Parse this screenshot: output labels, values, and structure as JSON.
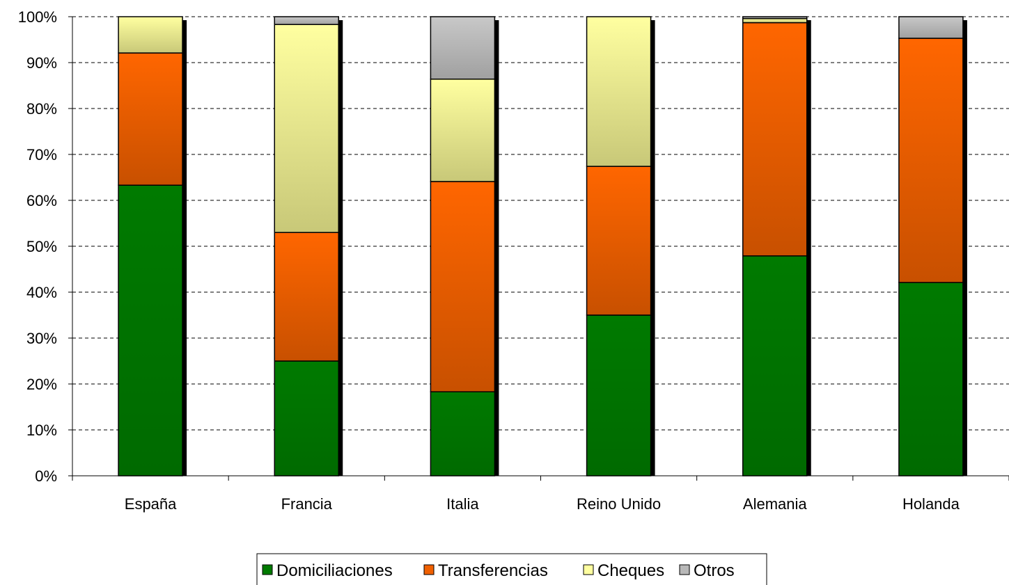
{
  "chart_data": {
    "type": "bar",
    "stacked": true,
    "percent_stacked": true,
    "categories": [
      "España",
      "Francia",
      "Italia",
      "Reino Unido",
      "Alemania",
      "Holanda"
    ],
    "series": [
      {
        "name": "Domiciliaciones",
        "color": "#007a00",
        "values": [
          63.3,
          25.0,
          18.3,
          35.0,
          47.9,
          42.1
        ]
      },
      {
        "name": "Transferencias",
        "color": "#f06000",
        "values": [
          28.8,
          28.0,
          45.8,
          32.4,
          50.8,
          53.2
        ]
      },
      {
        "name": "Cheques",
        "color": "#ffffa0",
        "values": [
          7.9,
          45.3,
          22.3,
          32.6,
          0.9,
          0.0
        ]
      },
      {
        "name": "Otros",
        "color": "#b8b8b8",
        "values": [
          0.0,
          1.7,
          13.6,
          0.0,
          0.4,
          4.7
        ]
      }
    ],
    "y_ticks": [
      "0%",
      "10%",
      "20%",
      "30%",
      "40%",
      "50%",
      "60%",
      "70%",
      "80%",
      "90%",
      "100%"
    ],
    "ylim": [
      0,
      100
    ],
    "grid": true,
    "legend_position": "bottom"
  }
}
